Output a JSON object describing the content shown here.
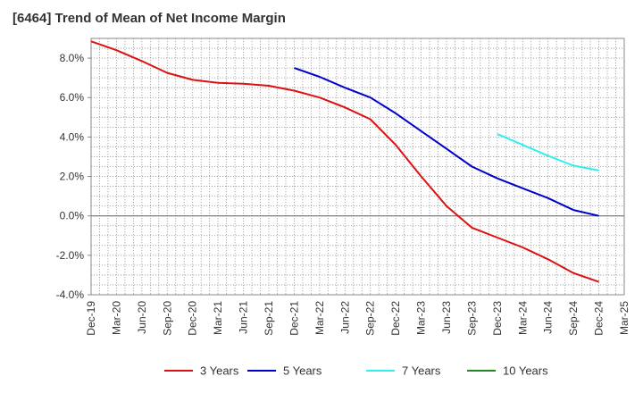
{
  "chart_data": {
    "type": "line",
    "title": "[6464]  Trend of Mean of Net Income Margin",
    "xlabel": "",
    "ylabel": "",
    "ylim": [
      -4.0,
      9.0
    ],
    "yticks": [
      8.0,
      6.0,
      4.0,
      2.0,
      0.0,
      -2.0,
      -4.0
    ],
    "ytick_labels": [
      "8.0%",
      "6.0%",
      "4.0%",
      "2.0%",
      "0.0%",
      "-2.0%",
      "-4.0%"
    ],
    "x": [
      "Dec-19",
      "Mar-20",
      "Jun-20",
      "Sep-20",
      "Dec-20",
      "Mar-21",
      "Jun-21",
      "Sep-21",
      "Dec-21",
      "Mar-22",
      "Jun-22",
      "Sep-22",
      "Dec-22",
      "Mar-23",
      "Jun-23",
      "Sep-23",
      "Dec-23",
      "Mar-24",
      "Jun-24",
      "Sep-24",
      "Dec-24",
      "Mar-25"
    ],
    "grid": true,
    "legend_position": "bottom",
    "series": [
      {
        "name": "3 Years",
        "color": "#dd1111",
        "points": [
          [
            0,
            8.85
          ],
          [
            1,
            8.4
          ],
          [
            2,
            7.85
          ],
          [
            3,
            7.25
          ],
          [
            4,
            6.9
          ],
          [
            5,
            6.75
          ],
          [
            6,
            6.7
          ],
          [
            7,
            6.6
          ],
          [
            8,
            6.35
          ],
          [
            9,
            6.0
          ],
          [
            10,
            5.5
          ],
          [
            11,
            4.9
          ],
          [
            12,
            3.6
          ],
          [
            13,
            2.0
          ],
          [
            14,
            0.5
          ],
          [
            15,
            -0.6
          ],
          [
            16,
            -1.1
          ],
          [
            17,
            -1.6
          ],
          [
            18,
            -2.2
          ],
          [
            19,
            -2.9
          ],
          [
            20,
            -3.35
          ]
        ]
      },
      {
        "name": "5 Years",
        "color": "#0000cc",
        "points": [
          [
            8,
            7.5
          ],
          [
            9,
            7.05
          ],
          [
            10,
            6.5
          ],
          [
            11,
            6.0
          ],
          [
            12,
            5.2
          ],
          [
            13,
            4.3
          ],
          [
            14,
            3.4
          ],
          [
            15,
            2.5
          ],
          [
            16,
            1.9
          ],
          [
            17,
            1.4
          ],
          [
            18,
            0.9
          ],
          [
            19,
            0.3
          ],
          [
            20,
            0.0
          ]
        ]
      },
      {
        "name": "7 Years",
        "color": "#33eeee",
        "points": [
          [
            16,
            4.15
          ],
          [
            17,
            3.6
          ],
          [
            18,
            3.05
          ],
          [
            19,
            2.55
          ],
          [
            20,
            2.3
          ]
        ]
      },
      {
        "name": "10 Years",
        "color": "#228822",
        "points": []
      }
    ]
  }
}
